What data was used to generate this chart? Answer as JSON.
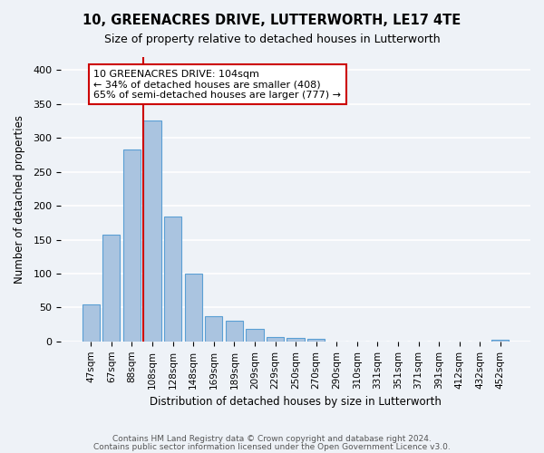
{
  "title": "10, GREENACRES DRIVE, LUTTERWORTH, LE17 4TE",
  "subtitle": "Size of property relative to detached houses in Lutterworth",
  "xlabel": "Distribution of detached houses by size in Lutterworth",
  "ylabel": "Number of detached properties",
  "bar_labels": [
    "47sqm",
    "67sqm",
    "88sqm",
    "108sqm",
    "128sqm",
    "148sqm",
    "169sqm",
    "189sqm",
    "209sqm",
    "229sqm",
    "250sqm",
    "270sqm",
    "290sqm",
    "310sqm",
    "331sqm",
    "351sqm",
    "371sqm",
    "391sqm",
    "412sqm",
    "432sqm",
    "452sqm"
  ],
  "bar_values": [
    55,
    158,
    283,
    326,
    184,
    100,
    37,
    31,
    18,
    6,
    5,
    4,
    0,
    0,
    0,
    0,
    0,
    0,
    0,
    0,
    3
  ],
  "bar_color": "#aac4e0",
  "bar_edge_color": "#5a9fd4",
  "vline_color": "#cc0000",
  "vline_x_index": 3,
  "annotation_text": "10 GREENACRES DRIVE: 104sqm\n← 34% of detached houses are smaller (408)\n65% of semi-detached houses are larger (777) →",
  "annotation_box_color": "#ffffff",
  "annotation_box_edge": "#cc0000",
  "ylim": [
    0,
    420
  ],
  "yticks": [
    0,
    50,
    100,
    150,
    200,
    250,
    300,
    350,
    400
  ],
  "footer_line1": "Contains HM Land Registry data © Crown copyright and database right 2024.",
  "footer_line2": "Contains public sector information licensed under the Open Government Licence v3.0.",
  "bg_color": "#eef2f7",
  "grid_color": "#ffffff"
}
